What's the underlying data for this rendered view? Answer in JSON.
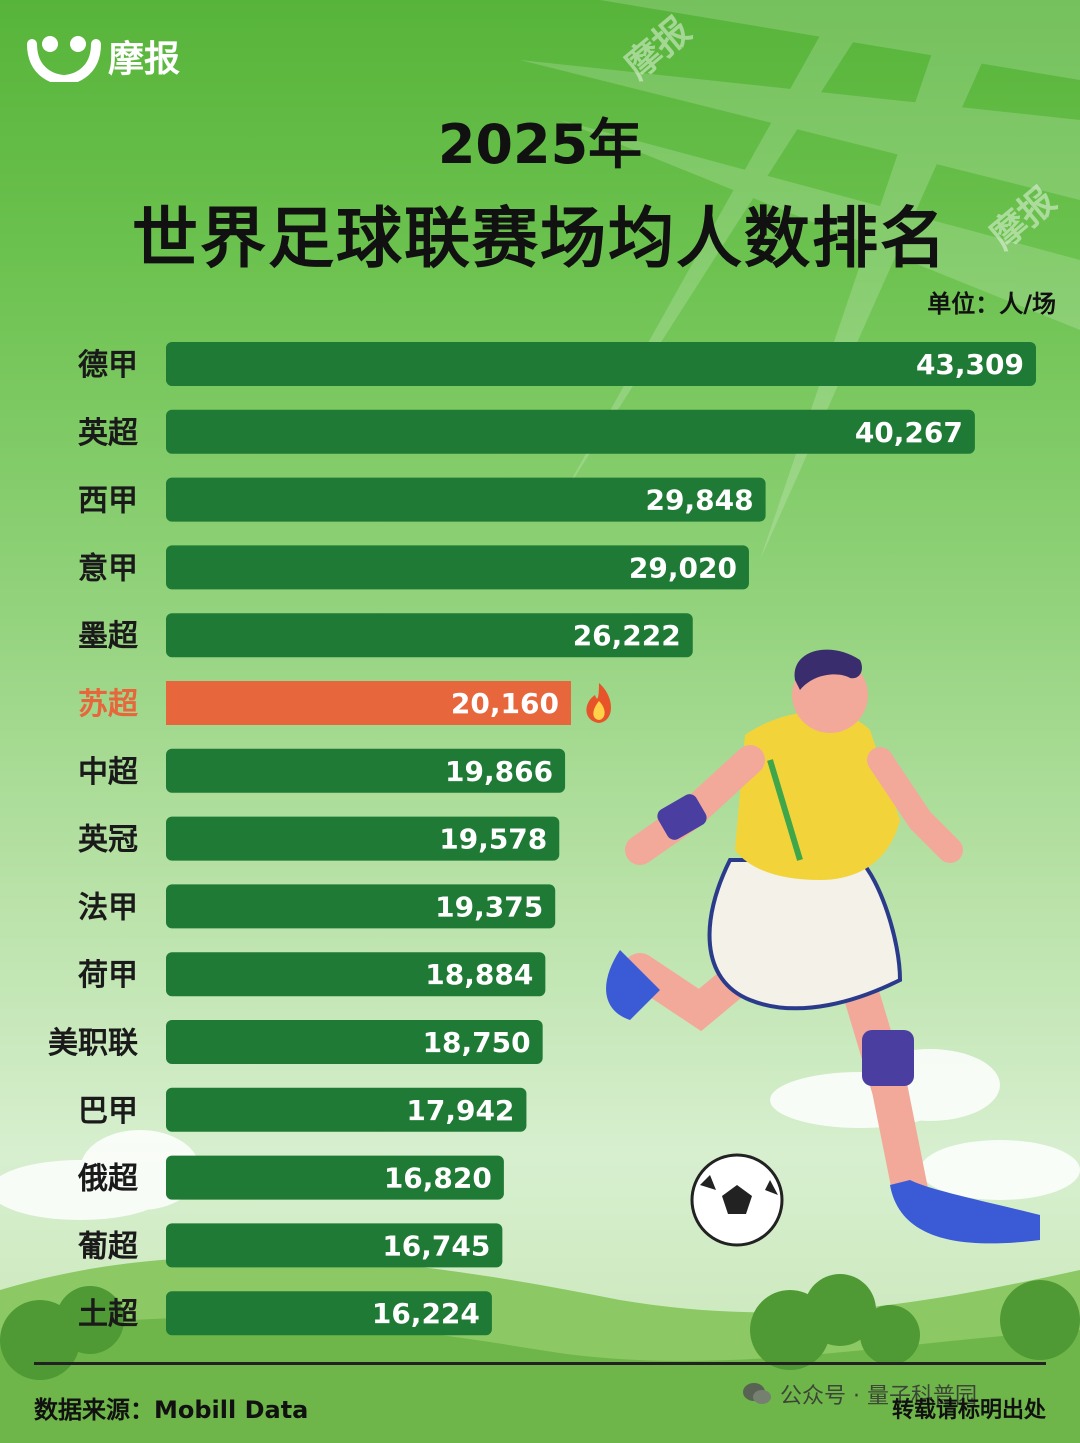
{
  "brand": {
    "logo_text": "摩报",
    "watermark_text": "摩报"
  },
  "header": {
    "year": "2025年",
    "title": "世界足球联赛场均人数排名",
    "unit": "单位：人/场"
  },
  "chart_data": {
    "type": "bar",
    "orientation": "horizontal",
    "title": "世界足球联赛场均人数排名",
    "categories": [
      "德甲",
      "英超",
      "西甲",
      "意甲",
      "墨超",
      "苏超",
      "中超",
      "英冠",
      "法甲",
      "荷甲",
      "美职联",
      "巴甲",
      "俄超",
      "葡超",
      "土超"
    ],
    "values": [
      43309,
      40267,
      29848,
      29020,
      26222,
      20160,
      19866,
      19578,
      19375,
      18884,
      18750,
      17942,
      16820,
      16745,
      16224
    ],
    "value_labels": [
      "43,309",
      "40,267",
      "29,848",
      "29,020",
      "26,222",
      "20,160",
      "19,866",
      "19,578",
      "19,375",
      "18,884",
      "18,750",
      "17,942",
      "16,820",
      "16,745",
      "16,224"
    ],
    "highlight": "苏超",
    "unit": "人/场",
    "colors": {
      "bar": "#1e7a34",
      "highlight": "#e8663c",
      "label": "#1a1a1a",
      "highlight_label": "#e8663c"
    },
    "grid": false,
    "legend": "none"
  },
  "footer": {
    "source": "数据来源：Mobill Data",
    "wechat": "公众号 · 量子科普园",
    "notice": "转载请标明出处"
  }
}
